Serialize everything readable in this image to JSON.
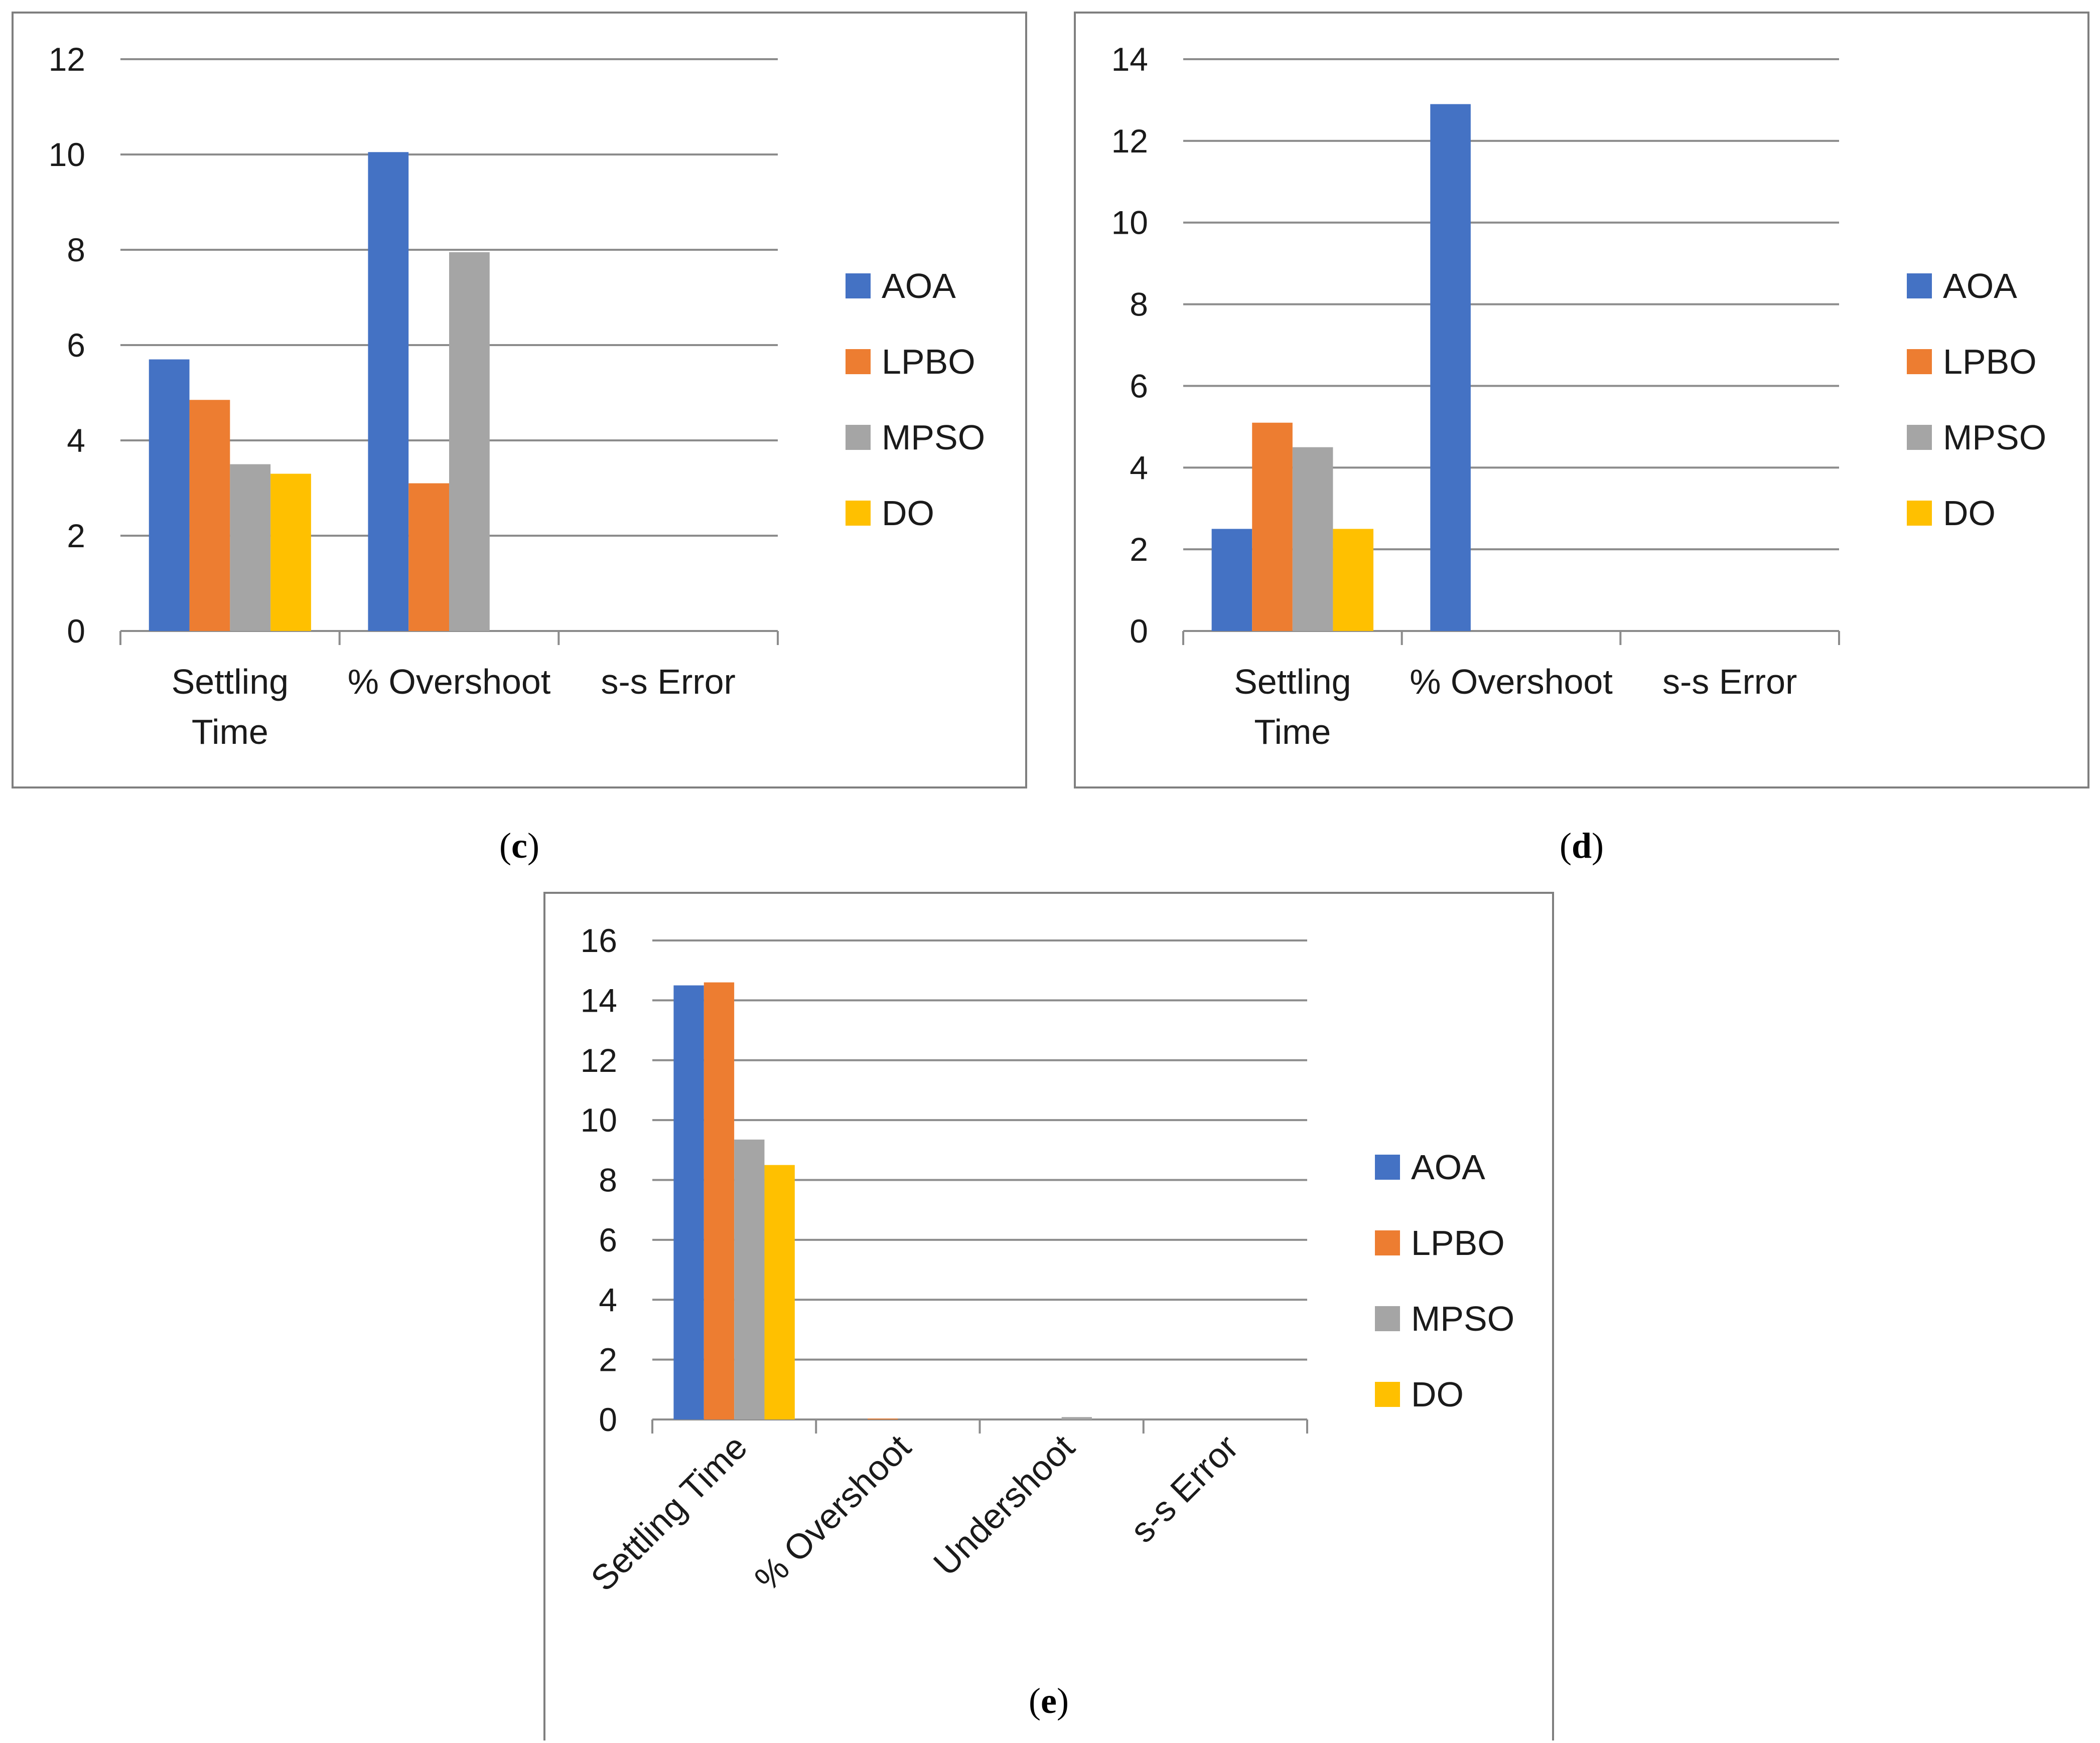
{
  "colors": {
    "AOA": "#4472C4",
    "LPBO": "#ED7D31",
    "MPSO": "#A5A5A5",
    "DO": "#FFC000"
  },
  "chart_data": [
    {
      "type": "bar",
      "caption_letter": "c",
      "categories": [
        [
          "Settling",
          "Time"
        ],
        [
          "% Overshoot"
        ],
        [
          "s-s Error"
        ]
      ],
      "yticks": [
        "0",
        "2",
        "4",
        "6",
        "8",
        "10",
        "12"
      ],
      "ylim": [
        0,
        12
      ],
      "series": [
        {
          "name": "AOA",
          "values": [
            5.7,
            10.05,
            0
          ]
        },
        {
          "name": "LPBO",
          "values": [
            4.85,
            3.1,
            0
          ]
        },
        {
          "name": "MPSO",
          "values": [
            3.5,
            7.95,
            0
          ]
        },
        {
          "name": "DO",
          "values": [
            3.3,
            0,
            0
          ]
        }
      ],
      "legend": [
        "AOA",
        "LPBO",
        "MPSO",
        "DO"
      ],
      "legend_position": "right"
    },
    {
      "type": "bar",
      "caption_letter": "d",
      "categories": [
        [
          "Settling",
          "Time"
        ],
        [
          "% Overshoot"
        ],
        [
          "s-s Error"
        ]
      ],
      "yticks": [
        "0",
        "2",
        "4",
        "6",
        "8",
        "10",
        "12",
        "14"
      ],
      "ylim": [
        0,
        14
      ],
      "series": [
        {
          "name": "AOA",
          "values": [
            2.5,
            12.9,
            0
          ]
        },
        {
          "name": "LPBO",
          "values": [
            5.1,
            0,
            0
          ]
        },
        {
          "name": "MPSO",
          "values": [
            4.5,
            0,
            0
          ]
        },
        {
          "name": "DO",
          "values": [
            2.5,
            0,
            0
          ]
        }
      ],
      "legend": [
        "AOA",
        "LPBO",
        "MPSO",
        "DO"
      ],
      "legend_position": "right"
    },
    {
      "type": "bar",
      "caption_letter": "e",
      "categories": [
        [
          "Settling Time"
        ],
        [
          "% Overshoot"
        ],
        [
          "Undershoot"
        ],
        [
          "s-s Error"
        ]
      ],
      "rotated_labels": true,
      "yticks": [
        "0",
        "2",
        "4",
        "6",
        "8",
        "10",
        "12",
        "14",
        "16"
      ],
      "ylim": [
        0,
        16
      ],
      "series": [
        {
          "name": "AOA",
          "values": [
            14.5,
            0,
            0,
            0
          ]
        },
        {
          "name": "LPBO",
          "values": [
            14.6,
            0.03,
            0,
            0
          ]
        },
        {
          "name": "MPSO",
          "values": [
            9.35,
            0,
            0.08,
            0
          ]
        },
        {
          "name": "DO",
          "values": [
            8.5,
            0,
            0,
            0
          ]
        }
      ],
      "legend": [
        "AOA",
        "LPBO",
        "MPSO",
        "DO"
      ],
      "legend_position": "right"
    }
  ]
}
